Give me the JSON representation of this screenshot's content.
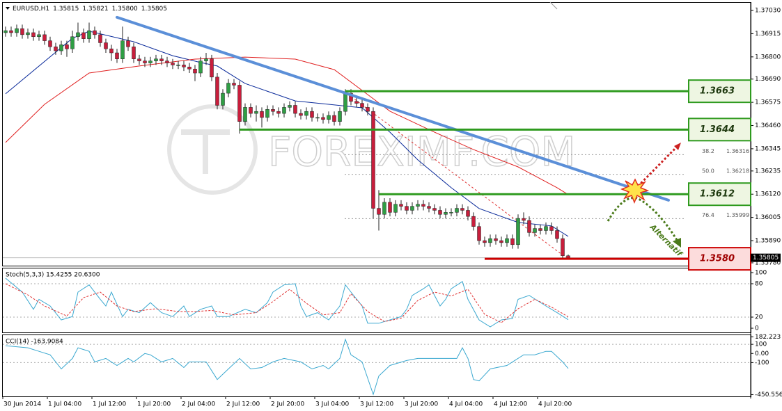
{
  "chart_data": [
    {
      "type": "candlestick",
      "title": "EURUSD,H1",
      "title_values": [
        "1.35815",
        "1.35821",
        "1.35800",
        "1.35805"
      ],
      "up_color": "#2f9e44",
      "down_color": "#c81e3c",
      "ylim": [
        1.35766,
        1.37068
      ],
      "yticks": [
        {
          "value": 1.3703,
          "label": "1.37030"
        },
        1.36915,
        {
          "value": 1.368,
          "label": "1.36800"
        },
        {
          "value": 1.3669,
          "label": "1.36690"
        },
        1.36575,
        {
          "value": 1.3646,
          "label": "1.36460"
        },
        1.36345,
        1.36235,
        {
          "value": 1.3612,
          "label": "1.36120"
        },
        1.36005,
        {
          "value": 1.3589,
          "label": "1.35890"
        },
        {
          "value": 1.3578,
          "label": "1.35780"
        }
      ],
      "xticks": [
        {
          "value": 0,
          "label": "30 Jun 2014"
        },
        {
          "value": 8,
          "label": "1 Jul 04:00"
        },
        {
          "value": 16,
          "label": "1 Jul 12:00"
        },
        {
          "value": 24,
          "label": "1 Jul 20:00"
        },
        {
          "value": 32,
          "label": "2 Jul 04:00"
        },
        {
          "value": 40,
          "label": "2 Jul 12:00"
        },
        {
          "value": 48,
          "label": "2 Jul 20:00"
        },
        {
          "value": 56,
          "label": "3 Jul 04:00"
        },
        {
          "value": 64,
          "label": "3 Jul 12:00"
        },
        {
          "value": 72,
          "label": "3 Jul 20:00"
        },
        {
          "value": 80,
          "label": "4 Jul 04:00"
        },
        {
          "value": 88,
          "label": "4 Jul 12:00"
        },
        {
          "value": 96,
          "label": "4 Jul 20:00"
        }
      ],
      "ohlc": [
        [
          1.3692,
          1.3695,
          1.369,
          1.3693
        ],
        [
          1.3693,
          1.3695,
          1.369,
          1.3692
        ],
        [
          1.3692,
          1.3696,
          1.369,
          1.3694
        ],
        [
          1.3694,
          1.3696,
          1.3689,
          1.3691
        ],
        [
          1.3691,
          1.3694,
          1.3689,
          1.3692
        ],
        [
          1.3692,
          1.3694,
          1.3688,
          1.369
        ],
        [
          1.369,
          1.3693,
          1.3688,
          1.3691
        ],
        [
          1.3691,
          1.3693,
          1.3686,
          1.3688
        ],
        [
          1.3688,
          1.369,
          1.3683,
          1.3685
        ],
        [
          1.3685,
          1.3687,
          1.3681,
          1.3683
        ],
        [
          1.3683,
          1.3688,
          1.3681,
          1.3686
        ],
        [
          1.3686,
          1.3688,
          1.368,
          1.3684
        ],
        [
          1.3684,
          1.3693,
          1.3682,
          1.369
        ],
        [
          1.369,
          1.3697,
          1.3688,
          1.3692
        ],
        [
          1.3692,
          1.3694,
          1.3687,
          1.3689
        ],
        [
          1.3689,
          1.3697,
          1.3687,
          1.3693
        ],
        [
          1.3693,
          1.3695,
          1.3689,
          1.3691
        ],
        [
          1.3691,
          1.3693,
          1.3685,
          1.3687
        ],
        [
          1.3687,
          1.3689,
          1.3682,
          1.3684
        ],
        [
          1.3684,
          1.3686,
          1.3678,
          1.3682
        ],
        [
          1.3682,
          1.3684,
          1.3677,
          1.3679
        ],
        [
          1.3679,
          1.3695,
          1.3677,
          1.3688
        ],
        [
          1.3688,
          1.369,
          1.3683,
          1.3685
        ],
        [
          1.3685,
          1.3687,
          1.3677,
          1.3679
        ],
        [
          1.3679,
          1.3681,
          1.3676,
          1.3678
        ],
        [
          1.3678,
          1.368,
          1.3675,
          1.3677
        ],
        [
          1.3677,
          1.368,
          1.3675,
          1.3678
        ],
        [
          1.3678,
          1.3681,
          1.3676,
          1.3679
        ],
        [
          1.3679,
          1.3681,
          1.3676,
          1.3678
        ],
        [
          1.3678,
          1.368,
          1.3675,
          1.3677
        ],
        [
          1.3677,
          1.3679,
          1.3674,
          1.3676
        ],
        [
          1.3676,
          1.3678,
          1.3674,
          1.3676
        ],
        [
          1.3676,
          1.3678,
          1.3673,
          1.3675
        ],
        [
          1.3675,
          1.3677,
          1.3672,
          1.3674
        ],
        [
          1.3674,
          1.3676,
          1.3668,
          1.3672
        ],
        [
          1.3672,
          1.368,
          1.367,
          1.3678
        ],
        [
          1.3678,
          1.3682,
          1.3676,
          1.3679
        ],
        [
          1.3679,
          1.3681,
          1.3668,
          1.367
        ],
        [
          1.367,
          1.3672,
          1.3654,
          1.3656
        ],
        [
          1.3656,
          1.3664,
          1.3654,
          1.3662
        ],
        [
          1.3662,
          1.3669,
          1.366,
          1.3667
        ],
        [
          1.3667,
          1.3669,
          1.3664,
          1.3666
        ],
        [
          1.3666,
          1.3668,
          1.3642,
          1.3648
        ],
        [
          1.3648,
          1.3657,
          1.3646,
          1.3655
        ],
        [
          1.3655,
          1.3657,
          1.365,
          1.3652
        ],
        [
          1.3652,
          1.3656,
          1.3648,
          1.3653
        ],
        [
          1.3653,
          1.3655,
          1.3645,
          1.365
        ],
        [
          1.365,
          1.3656,
          1.3648,
          1.3654
        ],
        [
          1.3654,
          1.3656,
          1.3651,
          1.3653
        ],
        [
          1.3653,
          1.3655,
          1.365,
          1.3652
        ],
        [
          1.3652,
          1.3657,
          1.365,
          1.3655
        ],
        [
          1.3655,
          1.3658,
          1.3653,
          1.3656
        ],
        [
          1.3656,
          1.3658,
          1.365,
          1.3652
        ],
        [
          1.3652,
          1.3654,
          1.3649,
          1.3651
        ],
        [
          1.3651,
          1.3655,
          1.3649,
          1.3653
        ],
        [
          1.3653,
          1.3655,
          1.3648,
          1.365
        ],
        [
          1.365,
          1.3652,
          1.3648,
          1.365
        ],
        [
          1.365,
          1.3652,
          1.3647,
          1.3649
        ],
        [
          1.3649,
          1.3653,
          1.3647,
          1.3651
        ],
        [
          1.3651,
          1.3653,
          1.3646,
          1.3648
        ],
        [
          1.3648,
          1.3655,
          1.3646,
          1.3653
        ],
        [
          1.3653,
          1.3664,
          1.3651,
          1.3662
        ],
        [
          1.3662,
          1.3664,
          1.3656,
          1.3658
        ],
        [
          1.3658,
          1.366,
          1.3655,
          1.3657
        ],
        [
          1.3657,
          1.3659,
          1.3653,
          1.3655
        ],
        [
          1.3655,
          1.3657,
          1.3651,
          1.3653
        ],
        [
          1.3653,
          1.3655,
          1.36,
          1.3605
        ],
        [
          1.3605,
          1.3614,
          1.3594,
          1.3602
        ],
        [
          1.3602,
          1.361,
          1.36,
          1.3608
        ],
        [
          1.3608,
          1.361,
          1.3601,
          1.3603
        ],
        [
          1.3603,
          1.3609,
          1.3601,
          1.3607
        ],
        [
          1.3607,
          1.3609,
          1.3604,
          1.3606
        ],
        [
          1.3606,
          1.3608,
          1.3602,
          1.3604
        ],
        [
          1.3604,
          1.3608,
          1.3602,
          1.3606
        ],
        [
          1.3606,
          1.3609,
          1.3604,
          1.3607
        ],
        [
          1.3607,
          1.3609,
          1.3604,
          1.3606
        ],
        [
          1.3606,
          1.3608,
          1.3603,
          1.3605
        ],
        [
          1.3605,
          1.3607,
          1.3602,
          1.3604
        ],
        [
          1.3604,
          1.3606,
          1.36,
          1.3602
        ],
        [
          1.3602,
          1.3605,
          1.36,
          1.3603
        ],
        [
          1.3603,
          1.3605,
          1.3601,
          1.3603
        ],
        [
          1.3603,
          1.3607,
          1.3601,
          1.3605
        ],
        [
          1.3605,
          1.3607,
          1.3602,
          1.3604
        ],
        [
          1.3604,
          1.3606,
          1.3599,
          1.3601
        ],
        [
          1.3601,
          1.3603,
          1.3594,
          1.3596
        ],
        [
          1.3596,
          1.3598,
          1.3587,
          1.3589
        ],
        [
          1.3589,
          1.3591,
          1.3586,
          1.3588
        ],
        [
          1.3588,
          1.3592,
          1.3586,
          1.359
        ],
        [
          1.359,
          1.3592,
          1.3587,
          1.3589
        ],
        [
          1.3589,
          1.3591,
          1.3586,
          1.3588
        ],
        [
          1.3588,
          1.3592,
          1.3586,
          1.359
        ],
        [
          1.359,
          1.3592,
          1.3585,
          1.3587
        ],
        [
          1.3587,
          1.3602,
          1.3585,
          1.36
        ],
        [
          1.36,
          1.3603,
          1.3597,
          1.3599
        ],
        [
          1.3599,
          1.3601,
          1.3591,
          1.3593
        ],
        [
          1.3593,
          1.3597,
          1.3591,
          1.3595
        ],
        [
          1.3595,
          1.3597,
          1.3592,
          1.3594
        ],
        [
          1.3594,
          1.3598,
          1.3592,
          1.3596
        ],
        [
          1.3596,
          1.3598,
          1.3592,
          1.3594
        ],
        [
          1.3594,
          1.3596,
          1.3588,
          1.359
        ],
        [
          1.359,
          1.3592,
          1.358,
          1.35815
        ],
        [
          1.35815,
          1.35821,
          1.358,
          1.35805
        ]
      ],
      "lines": [
        {
          "color": "#0a2a9a",
          "x": [
            0,
            12,
            15,
            23,
            30,
            35,
            38,
            43,
            52,
            58,
            64,
            69,
            74,
            80,
            85,
            92,
            98,
            101
          ],
          "values": [
            1.36617,
            1.36892,
            1.36927,
            1.36875,
            1.36806,
            1.36772,
            1.36755,
            1.36668,
            1.36582,
            1.36565,
            1.36548,
            1.36427,
            1.3629,
            1.36152,
            1.36049,
            1.3598,
            1.35963,
            1.35911
          ]
        },
        {
          "color": "#e02020",
          "x": [
            0,
            7,
            15,
            24,
            34,
            43,
            52,
            59,
            64,
            69,
            77,
            84,
            92,
            99,
            101
          ],
          "values": [
            1.36376,
            1.36565,
            1.3672,
            1.36755,
            1.36789,
            1.36799,
            1.36789,
            1.36737,
            1.36634,
            1.36531,
            1.36427,
            1.36341,
            1.36255,
            1.36152,
            1.36118
          ]
        }
      ],
      "trendline": {
        "color": "#5b8fd8",
        "x": [
          20,
          119
        ],
        "values": [
          1.36996,
          1.3609
        ]
      },
      "levels": [
        {
          "y": 1.3663,
          "x": 61,
          "color": "#2e9a1e"
        },
        {
          "y": 1.3644,
          "x": 42,
          "color": "#2e9a1e"
        },
        {
          "y": 1.3612,
          "x": 67,
          "color": "#2e9a1e"
        },
        {
          "y": {
            "value": 1.358,
            "label": "1.3580"
          },
          "x": 86,
          "color": "#cc0000"
        }
      ],
      "fibonacci": [
        {
          "level": "38.2",
          "price": 1.36316
        },
        {
          "level": "50.0",
          "price": 1.36218
        },
        {
          "level": "76.4",
          "price": 1.35999
        }
      ],
      "annotation": "Alternatif",
      "watermark": "FOREXIMF.COM"
    },
    {
      "type": "line",
      "title": "Stoch(5,3,3) 15.4255 20.6300",
      "ylim": [
        -7.5,
        107.5
      ],
      "yticks": [
        100,
        80,
        20,
        0
      ],
      "levels": [
        80,
        20
      ],
      "series": [
        {
          "color": "#3aa8d0",
          "x": [
            0,
            3,
            5,
            6,
            8,
            10,
            12,
            13,
            15,
            17,
            18,
            19,
            21,
            22,
            24,
            26,
            28,
            30,
            32,
            33,
            35,
            37,
            38,
            40,
            43,
            45,
            47,
            48,
            50,
            52,
            53,
            54,
            56,
            58,
            60,
            61,
            62,
            64,
            65,
            67,
            69,
            71,
            72,
            73,
            75,
            76,
            78,
            79,
            80,
            82,
            83,
            85,
            87,
            89,
            91,
            92,
            94,
            97,
            99,
            101
          ],
          "values": [
            90,
            65,
            34,
            52,
            40,
            15,
            21,
            65,
            78,
            52,
            40,
            65,
            21,
            34,
            28,
            46,
            28,
            21,
            40,
            21,
            34,
            40,
            21,
            21,
            34,
            28,
            46,
            65,
            78,
            80,
            40,
            21,
            28,
            15,
            40,
            78,
            65,
            40,
            9,
            9,
            15,
            21,
            34,
            59,
            71,
            78,
            40,
            52,
            71,
            84,
            52,
            15,
            2.5,
            15,
            17.5,
            52,
            59,
            40,
            28,
            15.4255
          ]
        },
        {
          "color": "#e03030",
          "x": [
            0,
            4,
            7,
            11,
            14,
            17,
            20,
            23,
            27,
            31,
            34,
            37,
            41,
            45,
            48,
            51,
            54,
            57,
            60,
            62,
            65,
            68,
            71,
            74,
            77,
            80,
            83,
            86,
            89,
            92,
            95,
            98,
            101
          ],
          "values": [
            80,
            60,
            40,
            22,
            55,
            65,
            40,
            30,
            35,
            30,
            30,
            32,
            24,
            28,
            48,
            70,
            45,
            24,
            28,
            62,
            30,
            12,
            18,
            50,
            65,
            58,
            70,
            25,
            10,
            35,
            52,
            38,
            20.63
          ]
        }
      ]
    },
    {
      "type": "line",
      "title": "CCI(14) -163.9084",
      "ylim": [
        -470,
        200
      ],
      "yticks": [
        182.223,
        100,
        {
          "value": 0,
          "label": "0.00"
        },
        -100,
        -450.5563
      ],
      "levels": [
        100,
        -100
      ],
      "series": [
        {
          "color": "#3aa8d0",
          "x": [
            0,
            4,
            6,
            8,
            10,
            12,
            13,
            15,
            16,
            18,
            20,
            22,
            23,
            25,
            26,
            28,
            30,
            32,
            33,
            35,
            36,
            38,
            40,
            42,
            44,
            46,
            48,
            50,
            53,
            55,
            57,
            58,
            60,
            61,
            62,
            64,
            66,
            67,
            69,
            72,
            74,
            78,
            81,
            82,
            83,
            84,
            85,
            87,
            90,
            91,
            93,
            95,
            97,
            98,
            100,
            101
          ],
          "values": [
            85,
            62,
            23,
            -15,
            -169,
            -54,
            62,
            23,
            -92,
            -54,
            -131,
            -54,
            -92,
            0,
            -15,
            -92,
            -54,
            -154,
            -92,
            -92,
            -92,
            -285,
            -169,
            -54,
            -169,
            -154,
            -92,
            -54,
            -92,
            -169,
            -131,
            -169,
            -54,
            154,
            -15,
            -92,
            -448,
            -246,
            -131,
            -77,
            -54,
            -54,
            -54,
            62,
            -54,
            -285,
            -300,
            -169,
            -131,
            -92,
            -15,
            -15,
            23,
            23,
            -92,
            -163.9084
          ]
        }
      ]
    }
  ]
}
